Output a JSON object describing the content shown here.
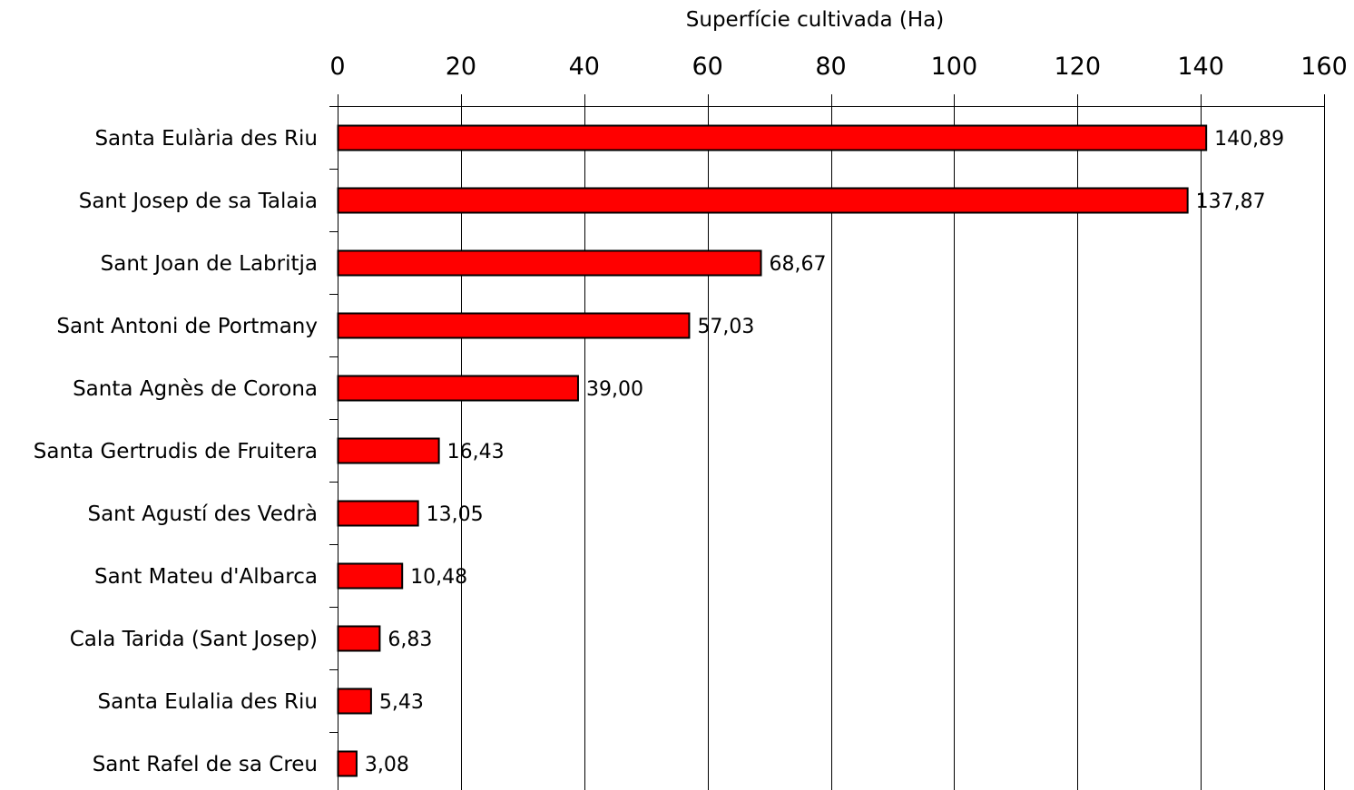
{
  "chart_data": {
    "type": "bar",
    "orientation": "horizontal",
    "title": "",
    "xlabel": "Superfície cultivada (Ha)",
    "ylabel": "",
    "xlim": [
      0,
      160
    ],
    "x_ticks": [
      0,
      20,
      40,
      60,
      80,
      100,
      120,
      140,
      160
    ],
    "x_axis_position": "top",
    "grid": "vertical",
    "legend": "none",
    "bar_color": "#ff0000",
    "bar_border_color": "#000000",
    "categories": [
      "Santa Eulària des Riu",
      "Sant Josep de sa Talaia",
      "Sant Joan de Labritja",
      "Sant Antoni de Portmany",
      "Santa Agnès de Corona",
      "Santa Gertrudis de Fruitera",
      "Sant Agustí des Vedrà",
      "Sant Mateu d'Albarca",
      "Cala Tarida (Sant Josep)",
      "Santa Eulalia des Riu",
      "Sant Rafel de sa Creu"
    ],
    "values": [
      140.89,
      137.87,
      68.67,
      57.03,
      39.0,
      16.43,
      13.05,
      10.48,
      6.83,
      5.43,
      3.08
    ],
    "data_labels": [
      "140,89",
      "137,87",
      "68,67",
      "57,03",
      "39,00",
      "16,43",
      "13,05",
      "10,48",
      "6,83",
      "5,43",
      "3,08"
    ]
  }
}
